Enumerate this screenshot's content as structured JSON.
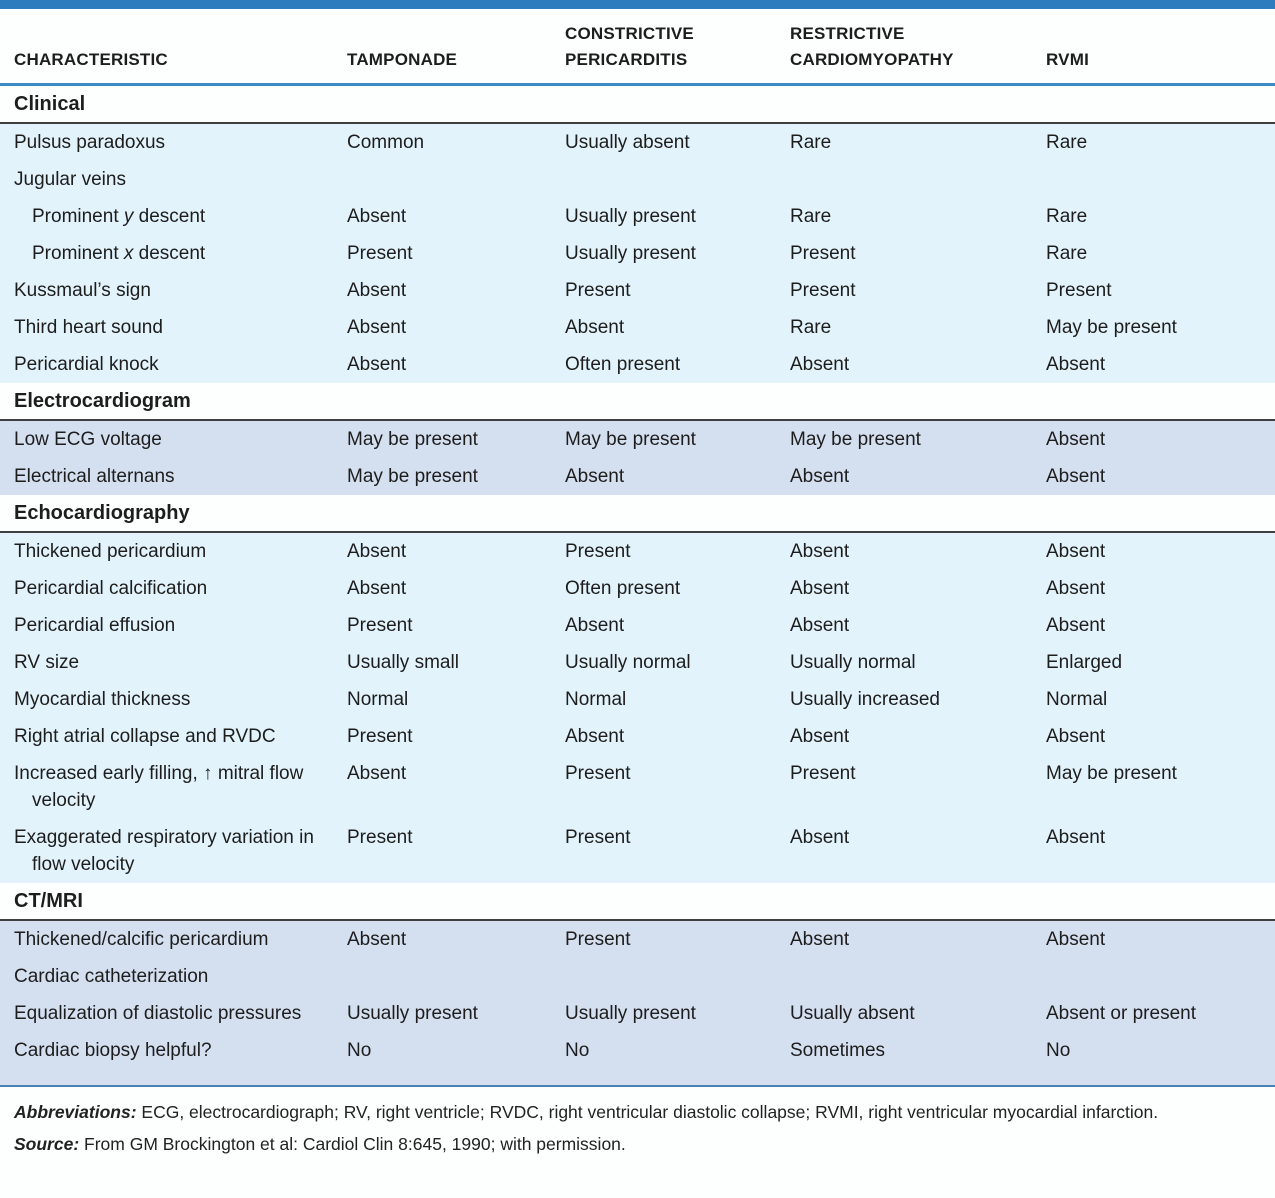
{
  "table": {
    "columns": [
      {
        "label": "CHARACTERISTIC"
      },
      {
        "label": "TAMPONADE"
      },
      {
        "label": "CONSTRICTIVE PERICARDITIS"
      },
      {
        "label": "RESTRICTIVE CARDIOMYOPATHY"
      },
      {
        "label": "RVMI"
      }
    ],
    "sections": [
      {
        "title": "Clinical",
        "tone": "light",
        "rows": [
          {
            "label": "Pulsus paradoxus",
            "indent": false,
            "values": [
              "Common",
              "Usually absent",
              "Rare",
              "Rare"
            ]
          },
          {
            "label": "Jugular veins",
            "indent": false,
            "values": [
              "",
              "",
              "",
              ""
            ]
          },
          {
            "label": "Prominent *y* descent",
            "indent": true,
            "values": [
              "Absent",
              "Usually present",
              "Rare",
              "Rare"
            ]
          },
          {
            "label": "Prominent *x* descent",
            "indent": true,
            "values": [
              "Present",
              "Usually present",
              "Present",
              "Rare"
            ]
          },
          {
            "label": "Kussmaul’s sign",
            "indent": false,
            "values": [
              "Absent",
              "Present",
              "Present",
              "Present"
            ]
          },
          {
            "label": "Third heart sound",
            "indent": false,
            "values": [
              "Absent",
              "Absent",
              "Rare",
              "May be present"
            ]
          },
          {
            "label": "Pericardial knock",
            "indent": false,
            "values": [
              "Absent",
              "Often present",
              "Absent",
              "Absent"
            ]
          }
        ]
      },
      {
        "title": "Electrocardiogram",
        "tone": "medium",
        "rows": [
          {
            "label": "Low ECG voltage",
            "indent": false,
            "values": [
              "May be present",
              "May be present",
              "May be present",
              "Absent"
            ]
          },
          {
            "label": "Electrical alternans",
            "indent": false,
            "values": [
              "May be present",
              "Absent",
              "Absent",
              "Absent"
            ]
          }
        ]
      },
      {
        "title": "Echocardiography",
        "tone": "light",
        "rows": [
          {
            "label": "Thickened pericardium",
            "indent": false,
            "values": [
              "Absent",
              "Present",
              "Absent",
              "Absent"
            ]
          },
          {
            "label": "Pericardial calcification",
            "indent": false,
            "values": [
              "Absent",
              "Often present",
              "Absent",
              "Absent"
            ]
          },
          {
            "label": "Pericardial effusion",
            "indent": false,
            "values": [
              "Present",
              "Absent",
              "Absent",
              "Absent"
            ]
          },
          {
            "label": "RV size",
            "indent": false,
            "values": [
              "Usually small",
              "Usually normal",
              "Usually normal",
              "Enlarged"
            ]
          },
          {
            "label": "Myocardial thickness",
            "indent": false,
            "values": [
              "Normal",
              "Normal",
              "Usually increased",
              "Normal"
            ]
          },
          {
            "label": "Right atrial collapse and RVDC",
            "indent": false,
            "values": [
              "Present",
              "Absent",
              "Absent",
              "Absent"
            ]
          },
          {
            "label": "Increased early filling, ↑ mitral flow velocity",
            "indent": false,
            "values": [
              "Absent",
              "Present",
              "Present",
              "May be present"
            ]
          },
          {
            "label": "Exaggerated respiratory variation in flow velocity",
            "indent": false,
            "values": [
              "Present",
              "Present",
              "Absent",
              "Absent"
            ]
          }
        ]
      },
      {
        "title": "CT/MRI",
        "tone": "medium",
        "rows": [
          {
            "label": "Thickened/calcific pericardium",
            "indent": false,
            "values": [
              "Absent",
              "Present",
              "Absent",
              "Absent"
            ]
          },
          {
            "label": "Cardiac catheterization",
            "indent": false,
            "values": [
              "",
              "",
              "",
              ""
            ]
          },
          {
            "label": "Equalization of diastolic pressures",
            "indent": false,
            "values": [
              "Usually present",
              "Usually present",
              "Usually absent",
              "Absent or present"
            ]
          },
          {
            "label": "Cardiac biopsy helpful?",
            "indent": false,
            "values": [
              "No",
              "No",
              "Sometimes",
              "No"
            ]
          }
        ]
      }
    ]
  },
  "footer": {
    "abbreviations_label": "Abbreviations:",
    "abbreviations_text": " ECG, electrocardiograph; RV, right ventricle; RVDC, right ventricular diastolic collapse; RVMI, right ventricular myocardial infarction.",
    "source_label": "Source:",
    "source_text": " From GM Brockington et al: Cardiol Clin 8:645, 1990; with permission."
  },
  "colors": {
    "top_bar": "#2e7cbe",
    "header_rule_blue": "#3a8ac6",
    "section_rule_dark": "#3f3f3f",
    "band_light_blue": "#e2f3fb",
    "band_periwinkle": "#d4dff0",
    "bottom_rule_blue": "#4a7fb5",
    "text": "#1d1d1d"
  }
}
